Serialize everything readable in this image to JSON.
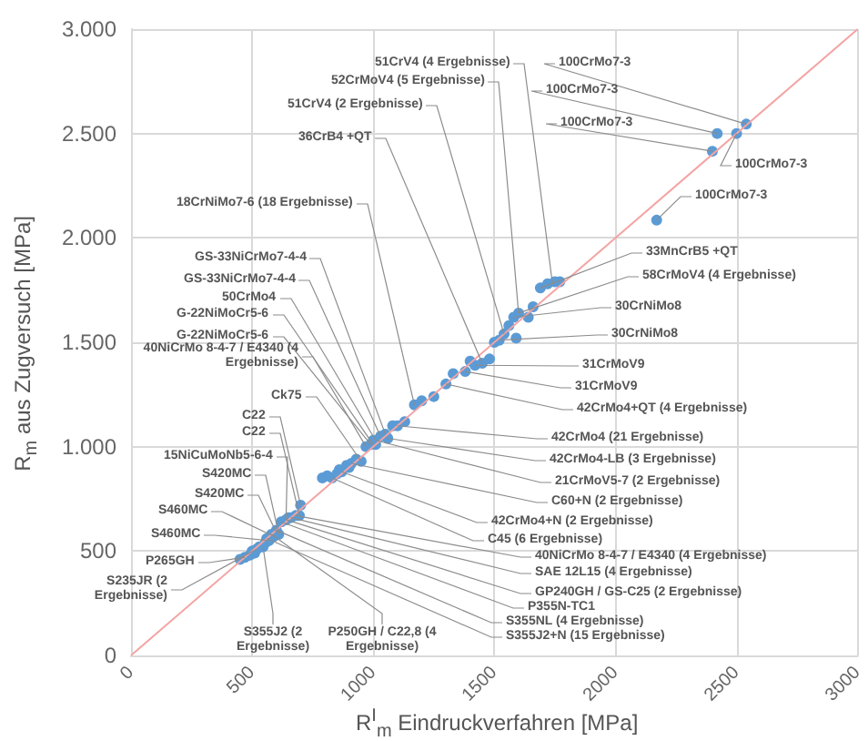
{
  "chart_data": {
    "type": "scatter",
    "xlabel": "R$^{I}$$_{m}$ Eindruckverfahren [MPa]",
    "ylabel": "R$_{m}$ aus Zugversuch [MPa]",
    "xlim": [
      0,
      3000
    ],
    "xticks": [
      0,
      500,
      1000,
      1500,
      2000,
      2500,
      3000
    ],
    "ylim": [
      0,
      3000
    ],
    "yticks": [
      {
        "value": 0,
        "label": "0"
      },
      {
        "value": 500,
        "label": "500"
      },
      {
        "value": 1000,
        "label": "1.000"
      },
      {
        "value": 1500,
        "label": "1.500"
      },
      {
        "value": 2000,
        "label": "2.000"
      },
      {
        "value": 2500,
        "label": "2.500"
      },
      {
        "value": 3000,
        "label": "3.000"
      }
    ],
    "grid": true,
    "marker": "circle",
    "series": [
      {
        "type": "line",
        "color": "#f4a3a3",
        "marker": "none",
        "x": [
          0,
          3000
        ],
        "values": [
          0,
          3000
        ]
      },
      {
        "type": "scatter",
        "color": "#5b9bd5",
        "x": [
          450,
          470,
          490,
          500,
          510,
          520,
          530,
          545,
          555,
          560,
          570,
          580,
          590,
          600,
          610,
          620,
          640,
          650,
          660,
          680,
          695,
          700,
          790,
          810,
          830,
          850,
          860,
          870,
          890,
          900,
          910,
          930,
          950,
          970,
          990,
          1000,
          1010,
          1030,
          1050,
          1060,
          1080,
          1100,
          1130,
          1170,
          1200,
          1250,
          1300,
          1330,
          1380,
          1400,
          1420,
          1450,
          1480,
          1500,
          1520,
          1540,
          1560,
          1590,
          1580,
          1600,
          1640,
          1660,
          1690,
          1720,
          1750,
          1770,
          2170,
          2400,
          2420,
          2500,
          2540
        ],
        "values": [
          460,
          470,
          480,
          500,
          490,
          510,
          520,
          520,
          540,
          560,
          550,
          580,
          570,
          600,
          580,
          640,
          650,
          660,
          660,
          670,
          670,
          720,
          850,
          860,
          850,
          870,
          890,
          880,
          910,
          900,
          920,
          940,
          930,
          1000,
          1010,
          1030,
          1010,
          1050,
          1060,
          1040,
          1100,
          1100,
          1120,
          1200,
          1220,
          1240,
          1300,
          1350,
          1360,
          1410,
          1390,
          1400,
          1420,
          1500,
          1510,
          1540,
          1580,
          1520,
          1620,
          1640,
          1620,
          1670,
          1760,
          1780,
          1790,
          1790,
          2085,
          2415,
          2500,
          2500,
          2545
        ]
      }
    ],
    "annotations": [
      {
        "text": "51CrV4 (4 Ergebnisse)",
        "x": 1740,
        "y": 1780
      },
      {
        "text": "52CrMoV4 (5 Ergebnisse)",
        "x": 1600,
        "y": 1640
      },
      {
        "text": "51CrV4 (2 Ergebnisse)",
        "x": 1540,
        "y": 1540
      },
      {
        "text": "36CrB4 +QT",
        "x": 1450,
        "y": 1400
      },
      {
        "text": "18CrNiMo7-6 (18 Ergebnisse)",
        "x": 1170,
        "y": 1200
      },
      {
        "text": "GS-33NiCrMo7-4-4",
        "x": 1050,
        "y": 1060
      },
      {
        "text": "GS-33NiCrMo7-4-4",
        "x": 1030,
        "y": 1050
      },
      {
        "text": "50CrMo4",
        "x": 1010,
        "y": 1030
      },
      {
        "text": "G-22NiMoCr5-6",
        "x": 1000,
        "y": 1010
      },
      {
        "text": "G-22NiMoCr5-6",
        "x": 990,
        "y": 1010
      },
      {
        "text": "40NiCrMo 8-4-7 / E4340 (4 Ergebnisse)",
        "x": 970,
        "y": 1000
      },
      {
        "text": "Ck75",
        "x": 950,
        "y": 930
      },
      {
        "text": "C22",
        "x": 700,
        "y": 720
      },
      {
        "text": "C22",
        "x": 695,
        "y": 670
      },
      {
        "text": "15NiCuMoNb5-6-4",
        "x": 640,
        "y": 650
      },
      {
        "text": "S420MC",
        "x": 610,
        "y": 580
      },
      {
        "text": "S420MC",
        "x": 600,
        "y": 590
      },
      {
        "text": "S460MC",
        "x": 590,
        "y": 570
      },
      {
        "text": "S460MC",
        "x": 570,
        "y": 550
      },
      {
        "text": "P265GH",
        "x": 470,
        "y": 470
      },
      {
        "text": "S235JR (2 Ergebnisse)",
        "x": 520,
        "y": 510
      },
      {
        "text": "S355J2 (2 Ergebnisse)",
        "x": 545,
        "y": 520
      },
      {
        "text": "P250GH / C22,8 (4 Ergebnisse)",
        "x": 580,
        "y": 580
      },
      {
        "text": "100CrMo7-3",
        "x": 2540,
        "y": 2545
      },
      {
        "text": "100CrMo7-3",
        "x": 2420,
        "y": 2500
      },
      {
        "text": "100CrMo7-3",
        "x": 2400,
        "y": 2415
      },
      {
        "text": "100CrMo7-3",
        "x": 2500,
        "y": 2500
      },
      {
        "text": "100CrMo7-3",
        "x": 2170,
        "y": 2085
      },
      {
        "text": "33MnCrB5 +QT",
        "x": 1690,
        "y": 1760
      },
      {
        "text": "58CrMoV4 (4 Ergebnisse)",
        "x": 1600,
        "y": 1640
      },
      {
        "text": "30CrNiMo8",
        "x": 1580,
        "y": 1620
      },
      {
        "text": "30CrNiMo8",
        "x": 1520,
        "y": 1510
      },
      {
        "text": "31CrMoV9",
        "x": 1420,
        "y": 1390
      },
      {
        "text": "31CrMoV9",
        "x": 1380,
        "y": 1360
      },
      {
        "text": "42CrMo4+QT (4 Ergebnisse)",
        "x": 1300,
        "y": 1300
      },
      {
        "text": "42CrMo4 (21 Ergebnisse)",
        "x": 1100,
        "y": 1100
      },
      {
        "text": "42CrMo4-LB (3 Ergebnisse)",
        "x": 1060,
        "y": 1040
      },
      {
        "text": "21CrMoV5-7 (2 Ergebnisse)",
        "x": 1010,
        "y": 1030
      },
      {
        "text": "C60+N (2 Ergebnisse)",
        "x": 910,
        "y": 920
      },
      {
        "text": "42CrMo4+N (2 Ergebnisse)",
        "x": 870,
        "y": 880
      },
      {
        "text": "C45 (6 Ergebnisse)",
        "x": 830,
        "y": 850
      },
      {
        "text": "40NiCrMo 8-4-7 / E4340 (4 Ergebnisse)",
        "x": 680,
        "y": 670
      },
      {
        "text": "SAE 12L15 (4 Ergebnisse)",
        "x": 660,
        "y": 660
      },
      {
        "text": "GP240GH / GS-C25 (2 Ergebnisse)",
        "x": 640,
        "y": 650
      },
      {
        "text": "P355N-TC1",
        "x": 620,
        "y": 640
      },
      {
        "text": "S355NL (4 Ergebnisse)",
        "x": 600,
        "y": 600
      },
      {
        "text": "S355J2+N (15 Ergebnisse)",
        "x": 560,
        "y": 560
      }
    ]
  }
}
